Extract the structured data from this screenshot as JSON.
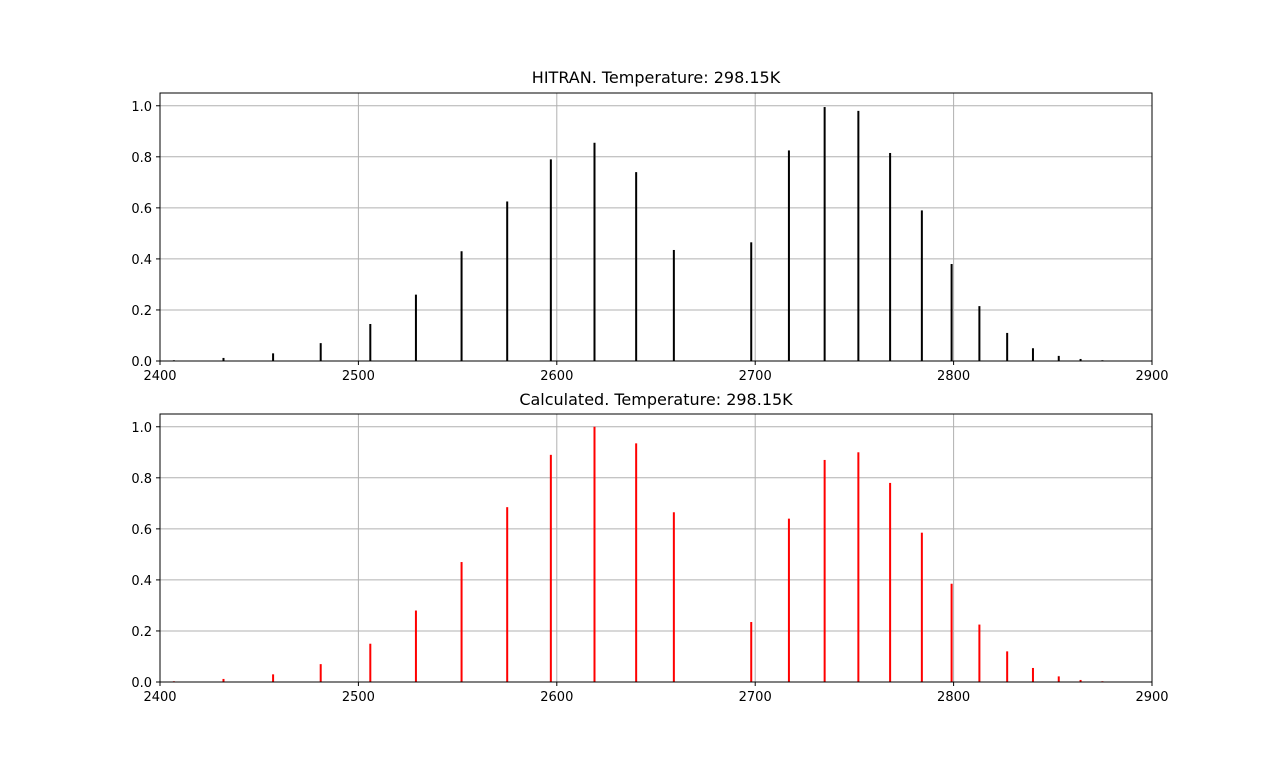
{
  "chart_data": [
    {
      "type": "bar",
      "title": "HITRAN. Temperature: 298.15K",
      "xlabel": "",
      "ylabel": "",
      "xlim": [
        2400,
        2900
      ],
      "ylim": [
        0,
        1.05
      ],
      "grid": true,
      "color": "#000000",
      "x_ticks": [
        "2400",
        "2500",
        "2600",
        "2700",
        "2800",
        "2900"
      ],
      "y_ticks": [
        "0.0",
        "0.2",
        "0.4",
        "0.6",
        "0.8",
        "1.0"
      ],
      "series": [
        {
          "x": [
            2407,
            2432,
            2457,
            2481,
            2506,
            2529,
            2552,
            2575,
            2597,
            2619,
            2640,
            2659,
            2698,
            2717,
            2735,
            2752,
            2768,
            2784,
            2799,
            2813,
            2827,
            2840,
            2853,
            2864,
            2875
          ],
          "values": [
            0.003,
            0.012,
            0.03,
            0.07,
            0.145,
            0.26,
            0.43,
            0.625,
            0.79,
            0.855,
            0.74,
            0.435,
            0.465,
            0.825,
            0.995,
            0.98,
            0.815,
            0.59,
            0.38,
            0.215,
            0.11,
            0.05,
            0.02,
            0.008,
            0.003
          ]
        }
      ]
    },
    {
      "type": "bar",
      "title": "Calculated. Temperature: 298.15K",
      "xlabel": "",
      "ylabel": "",
      "xlim": [
        2400,
        2900
      ],
      "ylim": [
        0,
        1.05
      ],
      "grid": true,
      "color": "#ff0000",
      "x_ticks": [
        "2400",
        "2500",
        "2600",
        "2700",
        "2800",
        "2900"
      ],
      "y_ticks": [
        "0.0",
        "0.2",
        "0.4",
        "0.6",
        "0.8",
        "1.0"
      ],
      "series": [
        {
          "x": [
            2407,
            2432,
            2457,
            2481,
            2506,
            2529,
            2552,
            2575,
            2597,
            2619,
            2640,
            2659,
            2698,
            2717,
            2735,
            2752,
            2768,
            2784,
            2799,
            2813,
            2827,
            2840,
            2853,
            2864,
            2875,
            2885
          ],
          "values": [
            0.003,
            0.012,
            0.03,
            0.07,
            0.15,
            0.28,
            0.47,
            0.685,
            0.89,
            1.0,
            0.935,
            0.665,
            0.235,
            0.64,
            0.87,
            0.9,
            0.78,
            0.585,
            0.385,
            0.225,
            0.12,
            0.055,
            0.022,
            0.008,
            0.003,
            0.001
          ]
        }
      ]
    }
  ]
}
